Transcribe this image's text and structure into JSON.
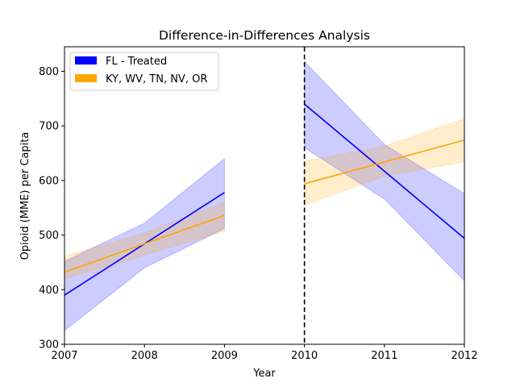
{
  "chart_data": {
    "type": "line",
    "title": "Difference-in-Differences Analysis",
    "xlabel": "Year",
    "ylabel": "Opioid (MME) per Capita",
    "xlim": [
      2007,
      2012
    ],
    "ylim": [
      300,
      845
    ],
    "xticks": [
      2007,
      2008,
      2009,
      2010,
      2011,
      2012
    ],
    "xtick_labels": [
      "2007",
      "2008",
      "2009",
      "2010",
      "2011",
      "2012"
    ],
    "yticks": [
      300,
      400,
      500,
      600,
      700,
      800
    ],
    "ytick_labels": [
      "300",
      "400",
      "500",
      "600",
      "700",
      "800"
    ],
    "grid": false,
    "legend_position": "upper-left",
    "policy_line": {
      "x": 2010,
      "style": "dashed",
      "color": "#000000"
    },
    "legend": [
      {
        "label": "FL - Treated",
        "color": "#0000ff"
      },
      {
        "label": "KY, WV, TN, NV, OR",
        "color": "#ffa500"
      }
    ],
    "series": [
      {
        "name": "FL - Treated",
        "color": "#0000ff",
        "segments": [
          {
            "x": [
              2007,
              2008,
              2009
            ],
            "y": [
              390,
              484,
              578
            ],
            "lower": [
              325,
              440,
              512
            ],
            "upper": [
              452,
              522,
              640
            ]
          },
          {
            "x": [
              2010,
              2011,
              2012
            ],
            "y": [
              740,
              617,
              494
            ],
            "lower": [
              660,
              566,
              416
            ],
            "upper": [
              818,
              666,
              576
            ]
          }
        ]
      },
      {
        "name": "KY, WV, TN, NV, OR",
        "color": "#ffa500",
        "segments": [
          {
            "x": [
              2007,
              2008,
              2009
            ],
            "y": [
              432,
              484,
              536
            ],
            "lower": [
              420,
              463,
              507
            ],
            "upper": [
              462,
              504,
              560
            ]
          },
          {
            "x": [
              2010,
              2011,
              2012
            ],
            "y": [
              594,
              634,
              674
            ],
            "lower": [
              555,
              608,
              634
            ],
            "upper": [
              635,
              663,
              713
            ]
          }
        ]
      }
    ]
  }
}
